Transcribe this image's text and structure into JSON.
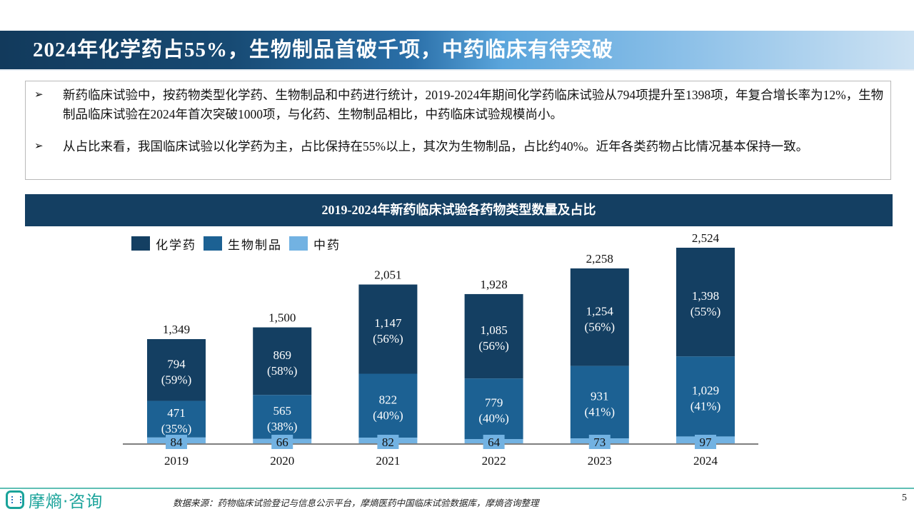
{
  "title": "2024年化学药占55%，生物制品首破千项，中药临床有待突破",
  "summary": {
    "bullet_symbol": "➢",
    "bullets": [
      "新药临床试验中，按药物类型化学药、生物制品和中药进行统计，2019-2024年期间化学药临床试验从794项提升至1398项，年复合增长率为12%，生物制品临床试验在2024年首次突破1000项，与化药、生物制品相比，中药临床试验规模尚小。",
      "从占比来看，我国临床试验以化学药为主，占比保持在55%以上，其次为生物制品，占比约40%。近年各类药物占比情况基本保持一致。"
    ]
  },
  "colors": {
    "chem": "#143f62",
    "bio": "#1c6193",
    "tcm": "#72b2e2",
    "axis": "#7f7f7f",
    "accent_teal": "#1aa39a"
  },
  "chart_data": {
    "type": "bar",
    "stacked": true,
    "title": "2019-2024年新药临床试验各药物类型数量及占比",
    "xlabel": "",
    "ylabel": "",
    "ylim": [
      0,
      2600
    ],
    "grid": false,
    "legend_position": "top-left",
    "categories": [
      "2019",
      "2020",
      "2021",
      "2022",
      "2023",
      "2024"
    ],
    "series": [
      {
        "name": "中药",
        "key": "tcm",
        "values": [
          84,
          66,
          82,
          64,
          73,
          97
        ],
        "labels": [
          "84",
          "66",
          "82",
          "64",
          "73",
          "97"
        ]
      },
      {
        "name": "生物制品",
        "key": "bio",
        "values": [
          471,
          565,
          822,
          779,
          931,
          1029
        ],
        "labels": [
          "471",
          "565",
          "822",
          "779",
          "931",
          "1,029"
        ],
        "pct": [
          "(35%)",
          "(38%)",
          "(40%)",
          "(40%)",
          "(41%)",
          "(41%)"
        ]
      },
      {
        "name": "化学药",
        "key": "chem",
        "values": [
          794,
          869,
          1147,
          1085,
          1254,
          1398
        ],
        "labels": [
          "794",
          "869",
          "1,147",
          "1,085",
          "1,254",
          "1,398"
        ],
        "pct": [
          "(59%)",
          "(58%)",
          "(56%)",
          "(56%)",
          "(56%)",
          "(55%)"
        ]
      }
    ],
    "totals": [
      1349,
      1500,
      2051,
      1928,
      2258,
      2524
    ],
    "total_labels": [
      "1,349",
      "1,500",
      "2,051",
      "1,928",
      "2,258",
      "2,524"
    ],
    "legend": [
      "化学药",
      "生物制品",
      "中药"
    ]
  },
  "footer": {
    "logo_text": "摩熵·咨询",
    "source": "数据来源：药物临床试验登记与信息公示平台，摩熵医药中国临床试验数据库，摩熵咨询整理",
    "page_number": "5"
  }
}
